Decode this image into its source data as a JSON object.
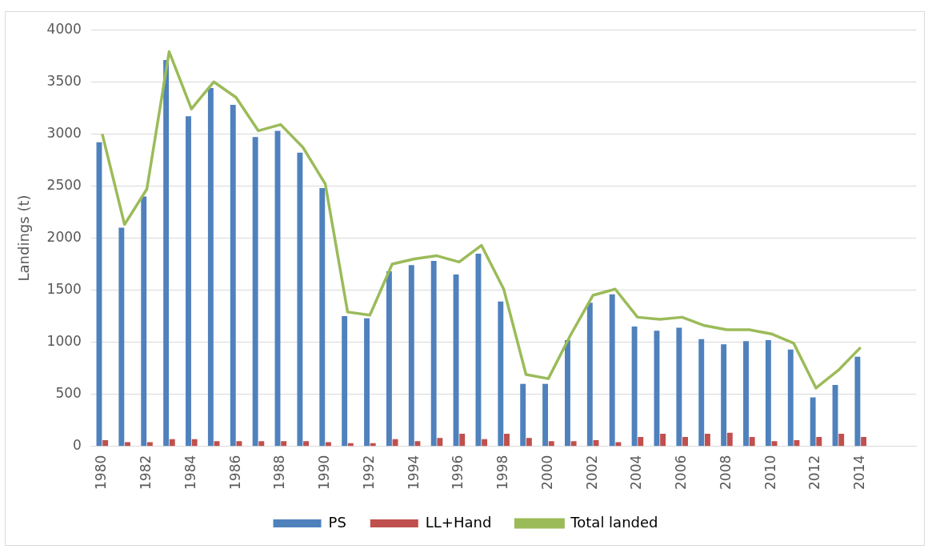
{
  "chart_data": {
    "type": "bar",
    "ylabel": "Landings (t)",
    "categories": [
      "1980",
      null,
      "1982",
      null,
      "1984",
      null,
      "1986",
      null,
      "1988",
      null,
      "1990",
      null,
      "1992",
      null,
      "1994",
      null,
      "1996",
      null,
      "1998",
      null,
      "2000",
      null,
      "2002",
      null,
      "2004",
      null,
      "2006",
      null,
      "2008",
      null,
      "2010",
      null,
      "2012",
      null,
      "2014",
      null,
      null
    ],
    "series": [
      {
        "name": "PS",
        "color": "#4f81bd",
        "values": [
          2920,
          2100,
          2400,
          3710,
          3170,
          3440,
          3280,
          2970,
          3030,
          2820,
          2480,
          1250,
          1230,
          1680,
          1740,
          1780,
          1650,
          1850,
          1390,
          600,
          600,
          1020,
          1380,
          1460,
          1150,
          1110,
          1140,
          1030,
          980,
          1010,
          1020,
          930,
          470,
          590,
          860,
          null,
          null
        ]
      },
      {
        "name": "LL+Hand",
        "color": "#c0504d",
        "values": [
          60,
          40,
          40,
          70,
          70,
          50,
          50,
          50,
          50,
          50,
          40,
          30,
          30,
          70,
          50,
          80,
          120,
          70,
          120,
          80,
          50,
          50,
          60,
          40,
          90,
          120,
          90,
          120,
          130,
          90,
          50,
          60,
          90,
          120,
          90,
          null,
          null
        ]
      },
      {
        "name": "Total landed",
        "type": "line",
        "color": "#9bbb59",
        "values": [
          3000,
          2130,
          2470,
          3790,
          3240,
          3500,
          3350,
          3030,
          3090,
          2870,
          2520,
          1290,
          1260,
          1750,
          1800,
          1830,
          1770,
          1930,
          1510,
          690,
          650,
          1070,
          1450,
          1510,
          1240,
          1220,
          1240,
          1160,
          1120,
          1120,
          1080,
          990,
          560,
          730,
          950,
          null,
          null
        ]
      }
    ],
    "ylim": [
      0,
      4000
    ],
    "yticks": [
      0,
      500,
      1000,
      1500,
      2000,
      2500,
      3000,
      3500,
      4000
    ],
    "grid": "y",
    "legend": "bottom",
    "marker": "none",
    "line_style": "solid"
  }
}
